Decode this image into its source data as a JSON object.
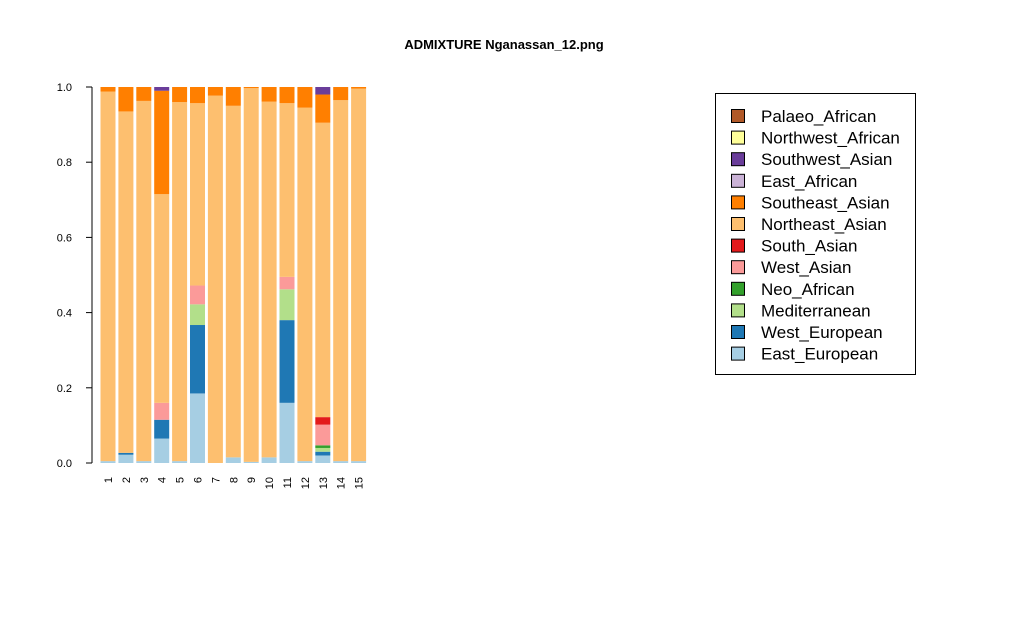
{
  "chart_data": {
    "type": "bar",
    "stacked": true,
    "title": "ADMIXTURE Nganassan_12.png",
    "xlabel": "",
    "ylabel": "",
    "ylim": [
      0,
      1
    ],
    "yticks": [
      "0.0",
      "0.2",
      "0.4",
      "0.6",
      "0.8",
      "1.0"
    ],
    "categories": [
      "1",
      "2",
      "3",
      "4",
      "5",
      "6",
      "7",
      "8",
      "9",
      "10",
      "11",
      "12",
      "13",
      "14",
      "15"
    ],
    "legend_position": "right",
    "series": [
      {
        "name": "East_European",
        "color": "#A6CEE3",
        "values": [
          0.005,
          0.022,
          0.005,
          0.065,
          0.005,
          0.185,
          0.0,
          0.015,
          0.003,
          0.015,
          0.16,
          0.005,
          0.02,
          0.005,
          0.005
        ]
      },
      {
        "name": "West_European",
        "color": "#1F78B4",
        "values": [
          0.0,
          0.005,
          0.0,
          0.05,
          0.0,
          0.182,
          0.0,
          0.0,
          0.0,
          0.0,
          0.22,
          0.0,
          0.01,
          0.0,
          0.0
        ]
      },
      {
        "name": "Mediterranean",
        "color": "#B2DF8A",
        "values": [
          0.0,
          0.0,
          0.0,
          0.0,
          0.0,
          0.055,
          0.0,
          0.0,
          0.0,
          0.0,
          0.082,
          0.0,
          0.01,
          0.0,
          0.0
        ]
      },
      {
        "name": "Neo_African",
        "color": "#33A02C",
        "values": [
          0.0,
          0.0,
          0.0,
          0.0,
          0.0,
          0.0,
          0.0,
          0.0,
          0.0,
          0.0,
          0.0,
          0.0,
          0.007,
          0.0,
          0.0
        ]
      },
      {
        "name": "West_Asian",
        "color": "#FB9A99",
        "values": [
          0.0,
          0.0,
          0.0,
          0.045,
          0.0,
          0.05,
          0.0,
          0.0,
          0.0,
          0.0,
          0.033,
          0.0,
          0.055,
          0.0,
          0.0
        ]
      },
      {
        "name": "South_Asian",
        "color": "#E31A1C",
        "values": [
          0.0,
          0.0,
          0.0,
          0.0,
          0.0,
          0.0,
          0.0,
          0.0,
          0.0,
          0.0,
          0.0,
          0.0,
          0.02,
          0.0,
          0.0
        ]
      },
      {
        "name": "Northeast_Asian",
        "color": "#FDBF6F",
        "values": [
          0.983,
          0.908,
          0.958,
          0.555,
          0.955,
          0.485,
          0.977,
          0.935,
          0.994,
          0.946,
          0.462,
          0.94,
          0.783,
          0.96,
          0.991
        ]
      },
      {
        "name": "Southeast_Asian",
        "color": "#FF7F00",
        "values": [
          0.012,
          0.065,
          0.037,
          0.275,
          0.04,
          0.043,
          0.023,
          0.05,
          0.003,
          0.039,
          0.043,
          0.055,
          0.075,
          0.035,
          0.004
        ]
      },
      {
        "name": "East_African",
        "color": "#CAB2D6",
        "values": [
          0,
          0,
          0,
          0,
          0,
          0,
          0,
          0,
          0,
          0,
          0,
          0,
          0,
          0,
          0
        ]
      },
      {
        "name": "Southwest_Asian",
        "color": "#6A3D9A",
        "values": [
          0.0,
          0.0,
          0.0,
          0.01,
          0.0,
          0.0,
          0.0,
          0.0,
          0.0,
          0.0,
          0.0,
          0.0,
          0.02,
          0.0,
          0.0
        ]
      },
      {
        "name": "Northwest_African",
        "color": "#FFFF99",
        "values": [
          0,
          0,
          0,
          0,
          0,
          0,
          0,
          0,
          0,
          0,
          0,
          0,
          0,
          0,
          0
        ]
      },
      {
        "name": "Palaeo_African",
        "color": "#B15928",
        "values": [
          0,
          0,
          0,
          0,
          0,
          0,
          0,
          0,
          0,
          0,
          0,
          0,
          0,
          0,
          0
        ]
      }
    ],
    "legend": [
      {
        "name": "Palaeo_African",
        "color": "#B15928"
      },
      {
        "name": "Northwest_African",
        "color": "#FFFF99"
      },
      {
        "name": "Southwest_Asian",
        "color": "#6A3D9A"
      },
      {
        "name": "East_African",
        "color": "#CAB2D6"
      },
      {
        "name": "Southeast_Asian",
        "color": "#FF7F00"
      },
      {
        "name": "Northeast_Asian",
        "color": "#FDBF6F"
      },
      {
        "name": "South_Asian",
        "color": "#E31A1C"
      },
      {
        "name": "West_Asian",
        "color": "#FB9A99"
      },
      {
        "name": "Neo_African",
        "color": "#33A02C"
      },
      {
        "name": "Mediterranean",
        "color": "#B2DF8A"
      },
      {
        "name": "West_European",
        "color": "#1F78B4"
      },
      {
        "name": "East_European",
        "color": "#A6CEE3"
      }
    ]
  }
}
